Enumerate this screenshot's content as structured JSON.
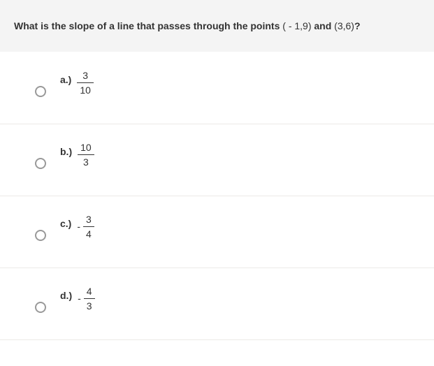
{
  "question": {
    "prefix": "What is the slope of a line that passes through the points ",
    "point1": "( - 1,9)",
    "middle": " and ",
    "point2": "(3,6)",
    "suffix": "?"
  },
  "options": [
    {
      "label": "a.)",
      "negative": false,
      "numerator": "3",
      "denominator": "10"
    },
    {
      "label": "b.)",
      "negative": false,
      "numerator": "10",
      "denominator": "3"
    },
    {
      "label": "c.)",
      "negative": true,
      "numerator": "3",
      "denominator": "4"
    },
    {
      "label": "d.)",
      "negative": true,
      "numerator": "4",
      "denominator": "3"
    }
  ],
  "style": {
    "header_bg": "#f4f4f4",
    "border_color": "#eceae7",
    "radio_border": "#999999",
    "text_color": "#333333",
    "frac_line_color": "#333333"
  }
}
